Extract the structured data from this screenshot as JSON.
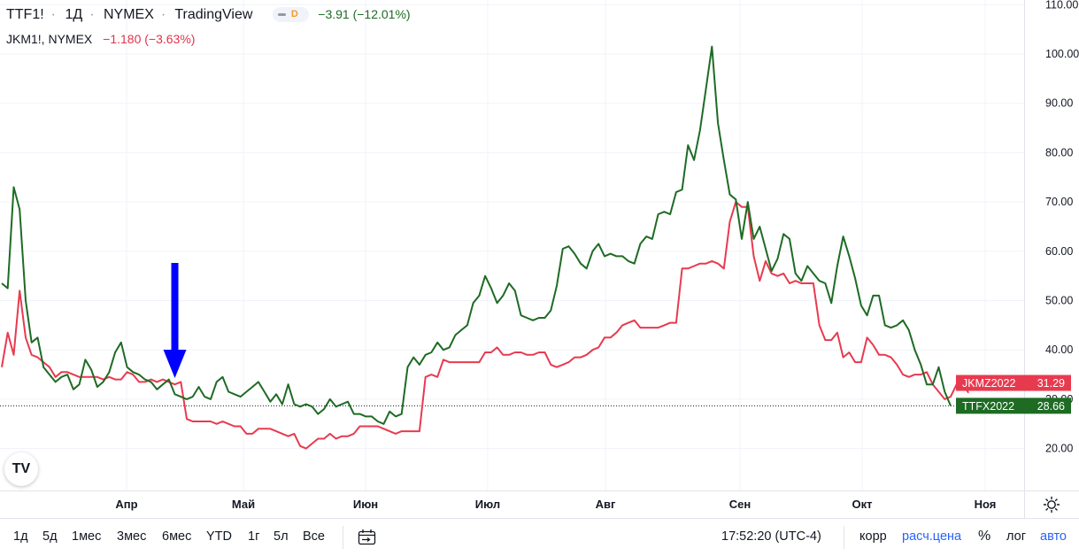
{
  "header": {
    "symbol": "TTF1!",
    "interval": "1Д",
    "exchange": "NYMEX",
    "source": "TradingView",
    "badge_letter": "D",
    "ttf_change": "−3.91 (−12.01%)",
    "compare_symbol": "JKM1!, NYMEX",
    "jkm_change": "−1.180 (−3.63%)"
  },
  "logo_text": "TV",
  "colors": {
    "ttf": "#1e6b24",
    "jkm": "#e83a4f",
    "arrow": "#0000ff",
    "grid": "#f0f3fa"
  },
  "price_labels": {
    "jkm": {
      "name": "JKMZ2022",
      "value": "31.29"
    },
    "ttf": {
      "name": "TTFX2022",
      "value": "28.66"
    }
  },
  "bottom_bar": {
    "ranges": [
      "1д",
      "5д",
      "1мес",
      "3мес",
      "6мес",
      "YTD",
      "1г",
      "5л",
      "Все"
    ],
    "time": "17:52:20 (UTC-4)",
    "corr": "корр",
    "calc": "расч.цена",
    "pct": "%",
    "log": "лог",
    "auto": "авто"
  },
  "chart_data": {
    "type": "line",
    "x_unit": "trading days",
    "x_labels": [
      "Апр",
      "Май",
      "Июн",
      "Июл",
      "Авг",
      "Сен",
      "Окт",
      "Ноя"
    ],
    "y_ticks": [
      "20.00",
      "30.00",
      "40.00",
      "50.00",
      "60.00",
      "70.00",
      "80.00",
      "90.00",
      "100.00",
      "110.00"
    ],
    "ylim": [
      12,
      111
    ],
    "last_value_line": 28.66,
    "annotation": {
      "type": "down-arrow",
      "at_x": 29
    },
    "series": [
      {
        "name": "TTF1!",
        "color": "#1e6b24",
        "values": [
          53.5,
          52.5,
          73.0,
          68.5,
          50.0,
          41.5,
          42.5,
          36.5,
          35.0,
          33.5,
          34.5,
          35.0,
          32.0,
          33.0,
          38.0,
          36.0,
          32.5,
          33.5,
          35.5,
          39.5,
          41.5,
          36.5,
          35.5,
          35.0,
          34.0,
          33.5,
          32.0,
          33.0,
          34.0,
          31.0,
          30.5,
          30.0,
          30.5,
          32.5,
          30.5,
          30.0,
          33.5,
          34.5,
          31.5,
          31.0,
          30.5,
          31.5,
          32.5,
          33.5,
          31.5,
          29.5,
          31.0,
          29.0,
          33.0,
          29.0,
          28.5,
          29.0,
          28.5,
          27.0,
          28.0,
          30.0,
          28.5,
          29.0,
          29.5,
          27.0,
          27.0,
          26.5,
          26.5,
          25.5,
          25.0,
          27.5,
          26.5,
          27.0,
          36.5,
          38.5,
          37.0,
          39.0,
          39.5,
          41.5,
          40.0,
          40.5,
          43.0,
          44.0,
          45.0,
          49.5,
          51.0,
          55.0,
          52.5,
          49.5,
          51.0,
          53.5,
          52.0,
          47.0,
          46.5,
          46.0,
          46.5,
          46.5,
          48.0,
          53.0,
          60.5,
          61.0,
          59.5,
          57.5,
          56.5,
          60.0,
          61.5,
          59.0,
          59.5,
          59.0,
          59.0,
          58.0,
          57.5,
          61.5,
          63.0,
          62.5,
          67.5,
          68.0,
          67.5,
          72.0,
          72.5,
          81.5,
          78.5,
          84.5,
          93.0,
          101.5,
          86.0,
          78.5,
          71.5,
          70.5,
          62.5,
          70.0,
          62.5,
          65.0,
          60.5,
          56.0,
          58.5,
          63.5,
          62.5,
          55.5,
          54.0,
          57.0,
          55.5,
          54.0,
          53.5,
          49.5,
          57.0,
          63.0,
          59.0,
          54.5,
          49.0,
          47.0,
          51.0,
          51.0,
          45.0,
          44.5,
          45.0,
          46.0,
          44.0,
          40.0,
          37.0,
          33.0,
          33.0,
          36.5,
          31.5,
          28.66
        ]
      },
      {
        "name": "JKM1!",
        "color": "#e83a4f",
        "values": [
          36.5,
          43.5,
          39.0,
          52.0,
          42.5,
          39.0,
          38.5,
          37.5,
          36.5,
          34.5,
          35.5,
          35.5,
          35.0,
          34.5,
          34.5,
          34.5,
          34.5,
          34.0,
          34.5,
          34.0,
          34.0,
          35.5,
          35.0,
          33.5,
          33.5,
          34.0,
          33.5,
          34.0,
          33.5,
          33.0,
          33.5,
          26.0,
          25.5,
          25.5,
          25.5,
          25.5,
          25.0,
          25.5,
          25.0,
          24.5,
          24.5,
          23.0,
          23.0,
          24.0,
          24.0,
          24.0,
          23.5,
          23.0,
          22.5,
          23.0,
          20.5,
          20.0,
          21.0,
          22.0,
          22.0,
          23.0,
          22.0,
          22.5,
          22.5,
          23.0,
          24.5,
          24.5,
          24.5,
          24.5,
          24.0,
          23.5,
          23.0,
          23.5,
          23.5,
          23.5,
          23.5,
          34.5,
          35.0,
          34.5,
          38.0,
          37.5,
          37.5,
          37.5,
          37.5,
          37.5,
          37.5,
          39.5,
          39.5,
          40.5,
          39.0,
          39.0,
          39.5,
          39.5,
          39.0,
          39.0,
          39.5,
          39.5,
          37.0,
          36.5,
          37.0,
          37.5,
          38.5,
          38.5,
          39.0,
          40.0,
          40.5,
          42.5,
          42.5,
          43.5,
          45.0,
          45.5,
          46.0,
          44.5,
          44.5,
          44.5,
          44.5,
          45.0,
          45.5,
          45.5,
          56.5,
          56.5,
          57.0,
          57.5,
          57.5,
          58.0,
          57.5,
          56.5,
          66.0,
          70.0,
          69.0,
          69.0,
          59.0,
          54.0,
          58.0,
          55.5,
          55.0,
          55.5,
          53.5,
          54.0,
          53.5,
          53.5,
          53.5,
          45.0,
          42.0,
          42.0,
          43.5,
          38.5,
          39.5,
          37.5,
          37.5,
          42.5,
          41.0,
          39.0,
          39.0,
          38.5,
          37.0,
          35.0,
          34.5,
          35.0,
          35.0,
          35.5,
          33.0,
          31.5,
          30.0,
          30.5,
          33.0,
          33.0,
          31.29
        ]
      }
    ]
  }
}
